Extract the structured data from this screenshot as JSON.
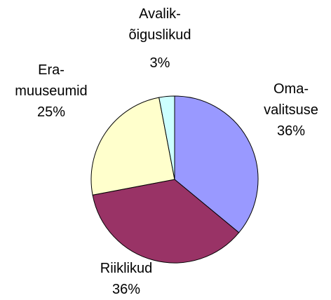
{
  "chart_data": {
    "type": "pie",
    "categories": [
      "Oma-\nvalitsuse",
      "Riiklikud",
      "Era-\nmuuseumid",
      "Avalik-\nõiguslikud"
    ],
    "values": [
      36,
      36,
      25,
      3
    ],
    "value_labels": [
      "36%",
      "36%",
      "25%",
      "3%"
    ],
    "colors": [
      "#9999ff",
      "#993366",
      "#ffffcc",
      "#ccffff"
    ]
  }
}
